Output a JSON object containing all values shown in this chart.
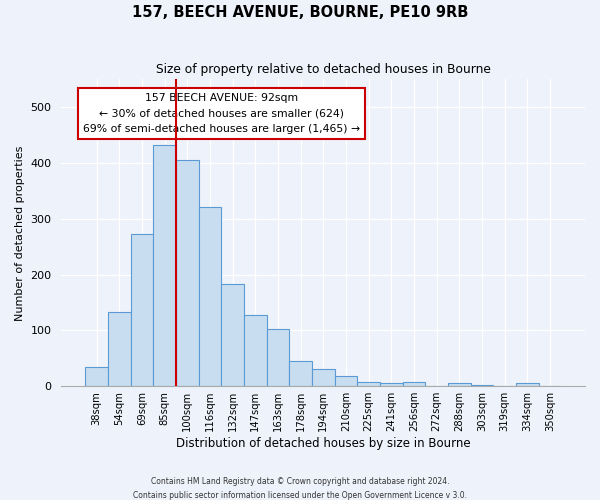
{
  "title": "157, BEECH AVENUE, BOURNE, PE10 9RB",
  "subtitle": "Size of property relative to detached houses in Bourne",
  "xlabel": "Distribution of detached houses by size in Bourne",
  "ylabel": "Number of detached properties",
  "bar_labels": [
    "38sqm",
    "54sqm",
    "69sqm",
    "85sqm",
    "100sqm",
    "116sqm",
    "132sqm",
    "147sqm",
    "163sqm",
    "178sqm",
    "194sqm",
    "210sqm",
    "225sqm",
    "241sqm",
    "256sqm",
    "272sqm",
    "288sqm",
    "303sqm",
    "319sqm",
    "334sqm",
    "350sqm"
  ],
  "bar_values": [
    35,
    133,
    272,
    432,
    405,
    322,
    184,
    127,
    103,
    46,
    30,
    18,
    8,
    6,
    8,
    0,
    5,
    2,
    0,
    5
  ],
  "bar_color": "#c8ddf0",
  "bar_edge_color": "#5b9bd5",
  "property_line_x": 3.5,
  "property_line_color": "#cc0000",
  "ylim": [
    0,
    550
  ],
  "annotation_title": "157 BEECH AVENUE: 92sqm",
  "annotation_line1": "← 30% of detached houses are smaller (624)",
  "annotation_line2": "69% of semi-detached houses are larger (1,465) →",
  "footer1": "Contains HM Land Registry data © Crown copyright and database right 2024.",
  "footer2": "Contains public sector information licensed under the Open Government Licence v 3.0.",
  "background_color": "#eef2fa",
  "plot_background": "#eef2fa",
  "grid_color": "#ffffff"
}
